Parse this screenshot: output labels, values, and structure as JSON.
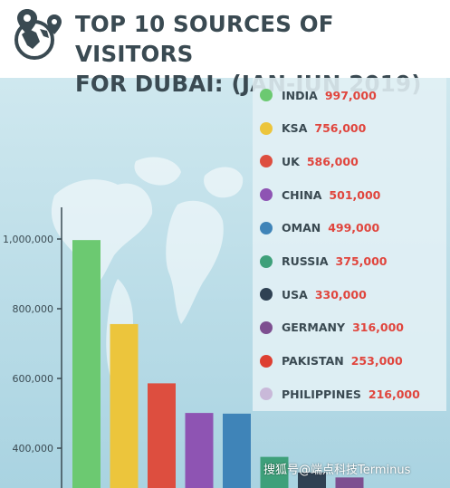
{
  "title": {
    "line1": "TOP 10 SOURCES OF VISITORS",
    "line2": "FOR DUBAI: (JAN-JUN 2019)"
  },
  "chart_data": {
    "type": "bar",
    "title": "TOP 10 SOURCES OF VISITORS FOR DUBAI: (JAN-JUN 2019)",
    "xlabel": "",
    "ylabel": "",
    "categories": [
      "INDIA",
      "KSA",
      "UK",
      "CHINA",
      "OMAN",
      "RUSSIA",
      "USA",
      "GERMANY",
      "PAKISTAN",
      "PHILIPPINES"
    ],
    "values": [
      997000,
      756000,
      586000,
      501000,
      499000,
      375000,
      330000,
      316000,
      253000,
      216000
    ],
    "value_labels": [
      "997,000",
      "756,000",
      "586,000",
      "501,000",
      "499,000",
      "375,000",
      "330,000",
      "316,000",
      "253,000",
      "216,000"
    ],
    "colors": [
      "#6cc971",
      "#ecc53c",
      "#dd4e3f",
      "#8e54b3",
      "#3f84b8",
      "#3ea07a",
      "#2f4153",
      "#7d4f90",
      "#dd3f31",
      "#c9b9d9"
    ],
    "y_ticks": [
      400000,
      600000,
      800000,
      1000000
    ],
    "y_tick_labels": [
      "400,000",
      "600,000",
      "800,000",
      "1,000,000"
    ],
    "ylim_visible": [
      330000,
      1100000
    ],
    "grid": false,
    "legend": "right"
  },
  "watermark": "搜狐号@端点科技Terminus"
}
